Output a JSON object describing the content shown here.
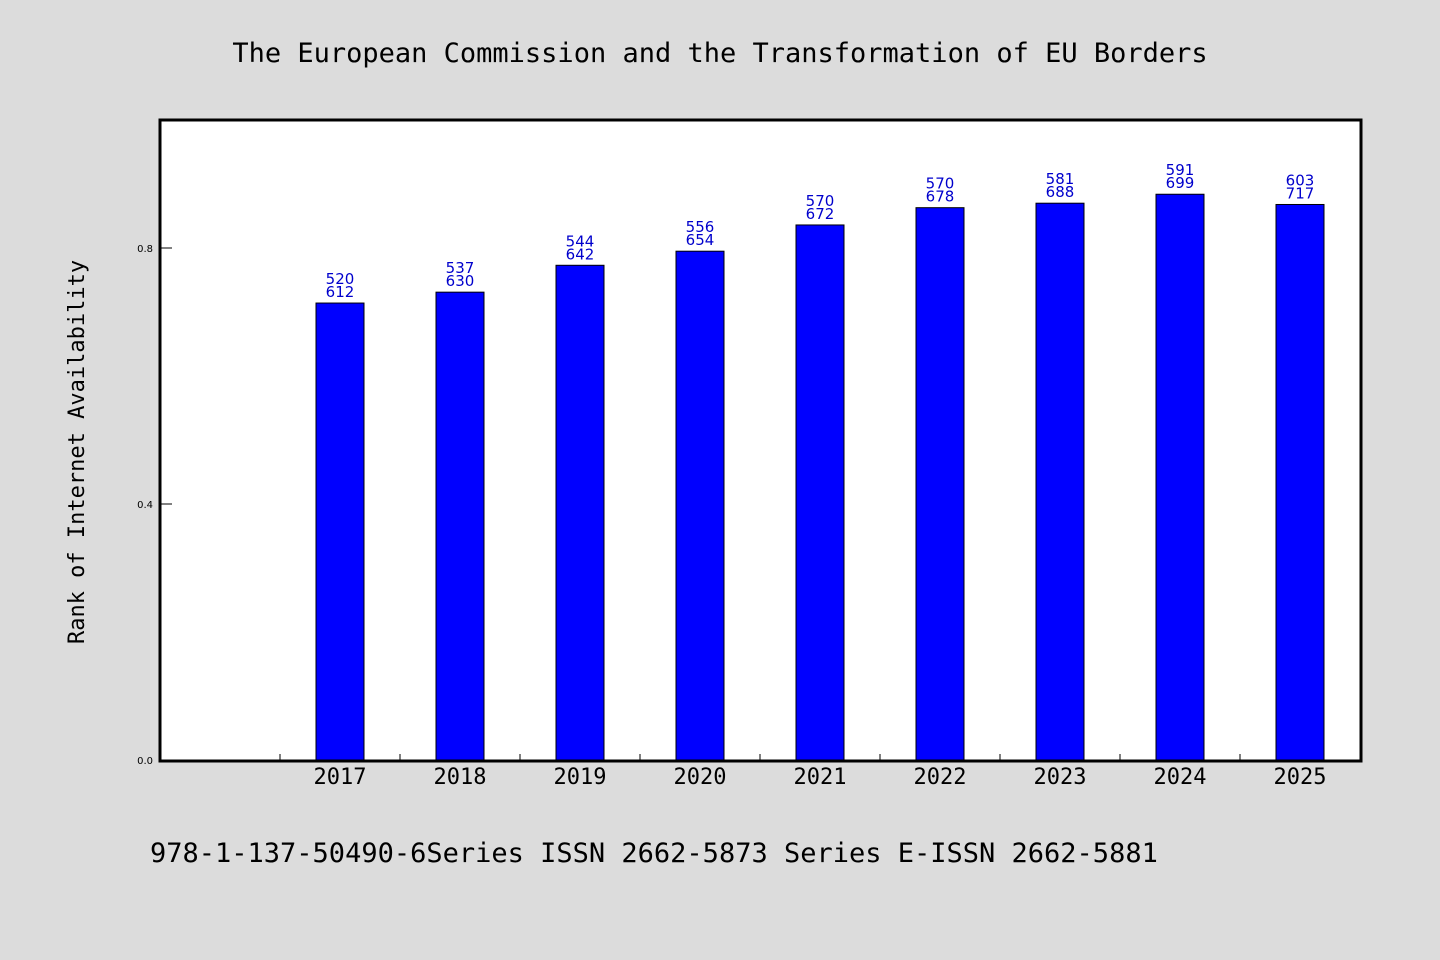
{
  "figure": {
    "background_color": "#dcdcdc",
    "plot_background": "#ffffff",
    "bar_color": "#0000ff",
    "label_color": "#0000cc",
    "footer": "978-1-137-50490-6Series ISSN 2662-5873 Series E-ISSN 2662-5881"
  },
  "chart_data": {
    "type": "bar",
    "title": "The European Commission and the Transformation of EU Borders",
    "xlabel": "",
    "ylabel": "Rank of Internet Availability",
    "categories": [
      "",
      "2017",
      "2018",
      "2019",
      "2020",
      "2021",
      "2022",
      "2023",
      "2024",
      "2025"
    ],
    "values": [
      null,
      0.714,
      0.731,
      0.773,
      0.795,
      0.836,
      0.863,
      0.87,
      0.884,
      0.868
    ],
    "data_labels": [
      [
        "",
        ""
      ],
      [
        "520",
        "612"
      ],
      [
        "537",
        "630"
      ],
      [
        "544",
        "642"
      ],
      [
        "556",
        "654"
      ],
      [
        "570",
        "672"
      ],
      [
        "570",
        "678"
      ],
      [
        "581",
        "688"
      ],
      [
        "591",
        "699"
      ],
      [
        "603",
        "717"
      ]
    ],
    "yticks": [
      0.0,
      0.4,
      0.8
    ],
    "ytick_labels": [
      "0.0",
      "0.4",
      "0.8"
    ],
    "ylim": [
      0,
      1.0
    ],
    "grid": false,
    "legend": "none"
  }
}
